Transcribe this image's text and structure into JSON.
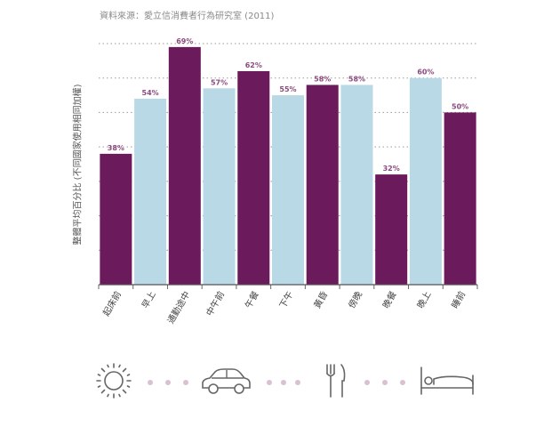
{
  "source_note": "資料來源：愛立信消費者行為研究室 (2011)",
  "chart_data": {
    "type": "bar",
    "title": "",
    "ylabel": "整體平均百分比 (不同國家使用相同加權)",
    "xlabel": "",
    "ylim": [
      0,
      70
    ],
    "grid": true,
    "categories": [
      "起床前",
      "早上",
      "通勤途中",
      "中午前",
      "午餐",
      "下午",
      "黃昏",
      "傍晚",
      "晚餐",
      "晚上",
      "睡前"
    ],
    "values": [
      38,
      54,
      69,
      57,
      62,
      55,
      58,
      58,
      32,
      60,
      50
    ],
    "data_labels": [
      "38%",
      "54%",
      "69%",
      "57%",
      "62%",
      "55%",
      "58%",
      "58%",
      "32%",
      "60%",
      "50%"
    ],
    "bar_colors": [
      "#6b1a5c",
      "#b9d9e6",
      "#6b1a5c",
      "#b9d9e6",
      "#6b1a5c",
      "#b9d9e6",
      "#6b1a5c",
      "#b9d9e6",
      "#6b1a5c",
      "#b9d9e6",
      "#6b1a5c"
    ],
    "label_color": "#8b4a7e"
  },
  "icons": [
    "sun-icon",
    "car-icon",
    "fork-knife-icon",
    "bed-icon"
  ]
}
